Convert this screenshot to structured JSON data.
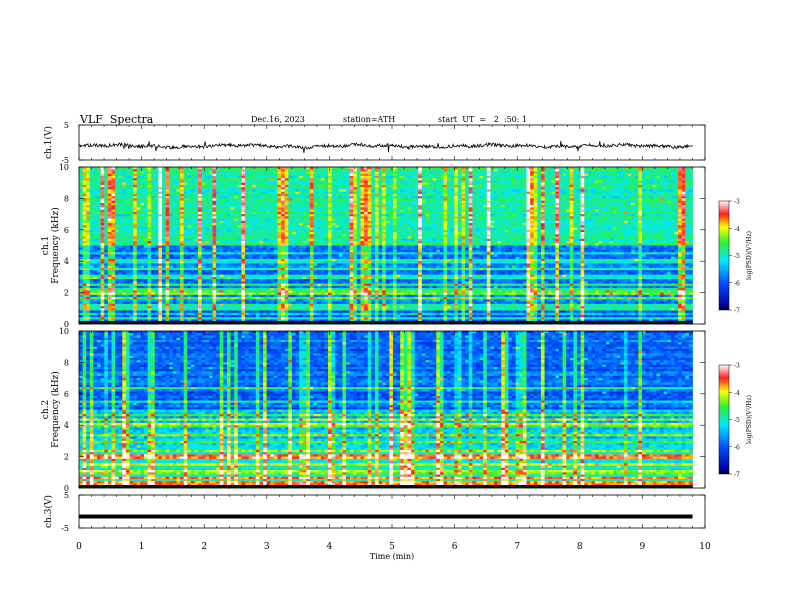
{
  "header": {
    "title": "VLF  Spectra",
    "date": "Dec.16, 2023",
    "station": "station=ATH",
    "start": "start  UT  =   2  :50: 1"
  },
  "chart_data": [
    {
      "type": "line",
      "panel": "ch1-waveform",
      "ylabel": "ch.1(V)",
      "yticks": [
        "5",
        "-5"
      ],
      "ylim": [
        -5,
        5
      ],
      "xlim": [
        0,
        10
      ],
      "series": [
        {
          "approx_level": -1.0,
          "color": "#000000"
        }
      ]
    },
    {
      "type": "heatmap",
      "panel": "ch1-spectrogram",
      "ylabel": "ch.1\nFrequency (kHz)",
      "yticks": [
        "0",
        "2",
        "4",
        "6",
        "8",
        "10"
      ],
      "ylim": [
        0,
        10
      ],
      "xlim": [
        0,
        9.8
      ],
      "colorbar": {
        "label": "log(PSD)(V²/Hz)",
        "ticks": [
          "-3",
          "-4",
          "-5",
          "-6",
          "-7"
        ],
        "range": [
          -7,
          -3
        ]
      }
    },
    {
      "type": "heatmap",
      "panel": "ch2-spectrogram",
      "ylabel": "ch.2\nFrequency (kHz)",
      "yticks": [
        "0",
        "2",
        "4",
        "6",
        "8",
        "10"
      ],
      "ylim": [
        0,
        10
      ],
      "xlim": [
        0,
        9.8
      ],
      "colorbar": {
        "label": "log(PSD)(V²/Hz)",
        "ticks": [
          "-3",
          "-4",
          "-5",
          "-6",
          "-7"
        ],
        "range": [
          -7,
          -3
        ]
      }
    },
    {
      "type": "line",
      "panel": "ch3-waveform",
      "ylabel": "ch.3(V)",
      "yticks": [
        "5",
        "-5"
      ],
      "ylim": [
        -5,
        5
      ],
      "xlim": [
        0,
        10
      ],
      "series": [
        {
          "approx_level": -1.5,
          "color": "#000000"
        }
      ]
    }
  ],
  "xaxis": {
    "label": "Time  (min)",
    "ticks": [
      "0",
      "1",
      "2",
      "3",
      "4",
      "5",
      "6",
      "7",
      "8",
      "9",
      "10"
    ]
  }
}
